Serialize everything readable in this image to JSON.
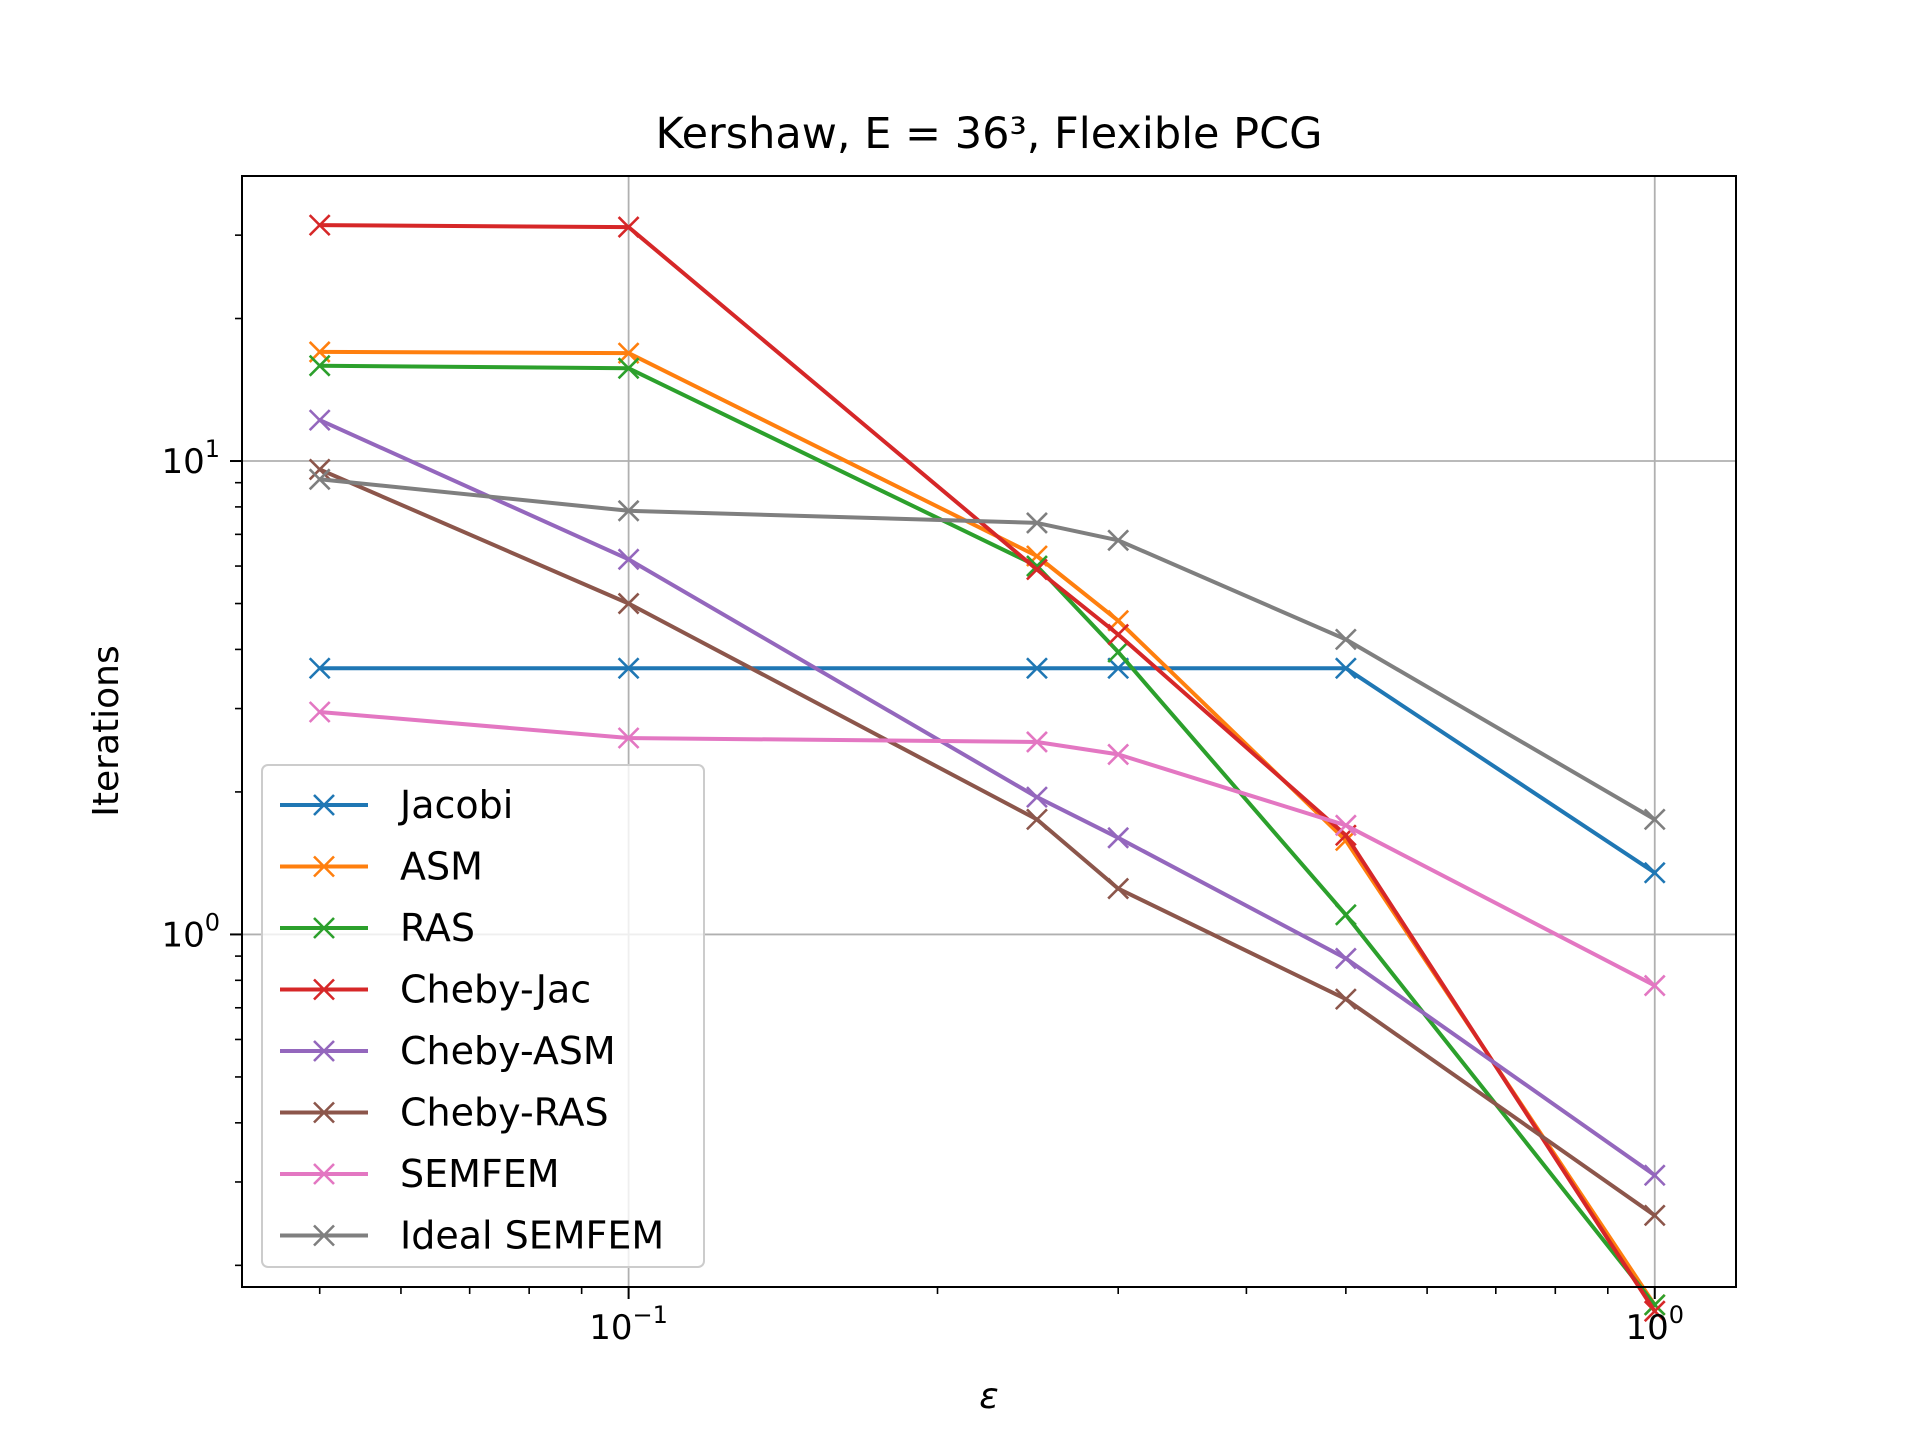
{
  "chart_data": {
    "type": "line",
    "title": "Kershaw, E = 36³, Flexible PCG",
    "xlabel": "ε",
    "ylabel": "Iterations",
    "xscale": "log",
    "yscale": "log",
    "xlim": [
      0.042,
      1.2
    ],
    "ylim": [
      0.18,
      40
    ],
    "grid": true,
    "legend_position": "lower-left",
    "marker": "x",
    "x": [
      0.05,
      0.1,
      0.25,
      0.3,
      0.5,
      1.0
    ],
    "xticks": [
      {
        "value": 0.1,
        "base": "10",
        "exp": "−1"
      },
      {
        "value": 1.0,
        "base": "10",
        "exp": "0"
      }
    ],
    "yticks": [
      {
        "value": 1,
        "base": "10",
        "exp": "0"
      },
      {
        "value": 10,
        "base": "10",
        "exp": "1"
      }
    ],
    "series": [
      {
        "name": "Jacobi",
        "color": "#1f77b4",
        "values": [
          3.65,
          3.65,
          3.65,
          3.65,
          3.65,
          1.35
        ]
      },
      {
        "name": "ASM",
        "color": "#ff7f0e",
        "values": [
          17.0,
          16.9,
          6.3,
          4.6,
          1.58,
          0.165
        ]
      },
      {
        "name": "RAS",
        "color": "#2ca02c",
        "values": [
          15.9,
          15.7,
          6.0,
          3.95,
          1.1,
          0.165
        ]
      },
      {
        "name": "Cheby-Jac",
        "color": "#d62728",
        "values": [
          31.5,
          31.2,
          5.9,
          4.3,
          1.62,
          0.16
        ]
      },
      {
        "name": "Cheby-ASM",
        "color": "#9467bd",
        "values": [
          12.2,
          6.2,
          1.95,
          1.6,
          0.89,
          0.31
        ]
      },
      {
        "name": "Cheby-RAS",
        "color": "#8c564b",
        "values": [
          9.6,
          5.0,
          1.75,
          1.25,
          0.73,
          0.255
        ]
      },
      {
        "name": "SEMFEM",
        "color": "#e377c2",
        "values": [
          2.95,
          2.6,
          2.55,
          2.4,
          1.7,
          0.78
        ]
      },
      {
        "name": "Ideal SEMFEM",
        "color": "#7f7f7f",
        "values": [
          9.15,
          7.85,
          7.4,
          6.8,
          4.2,
          1.75
        ]
      }
    ]
  }
}
